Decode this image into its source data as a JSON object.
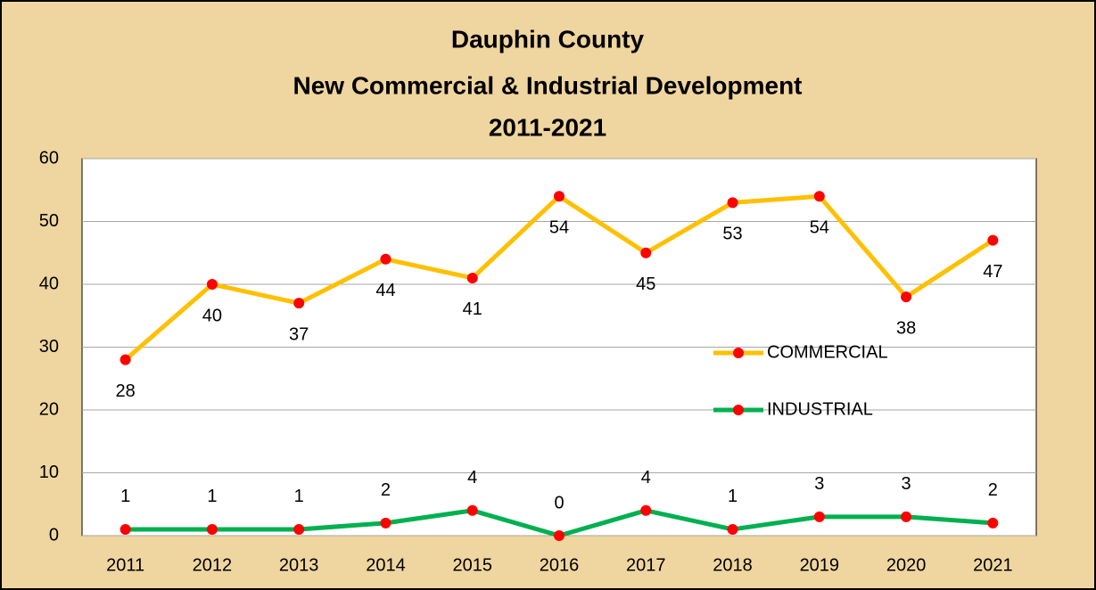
{
  "chart_data": {
    "type": "line",
    "title": [
      "Dauphin County",
      "New Commercial & Industrial Development",
      "2011-2021"
    ],
    "categories": [
      "2011",
      "2012",
      "2013",
      "2014",
      "2015",
      "2016",
      "2017",
      "2018",
      "2019",
      "2020",
      "2021"
    ],
    "series": [
      {
        "name": "COMMERCIAL",
        "color": "#ffc000",
        "values": [
          28,
          40,
          37,
          44,
          41,
          54,
          45,
          53,
          54,
          38,
          47
        ]
      },
      {
        "name": "INDUSTRIAL",
        "color": "#00b050",
        "values": [
          1,
          1,
          1,
          2,
          4,
          0,
          4,
          1,
          3,
          3,
          2
        ]
      }
    ],
    "marker_color": "#ff0000",
    "ylim": [
      0,
      60
    ],
    "yticks": [
      0,
      10,
      20,
      30,
      40,
      50,
      60
    ],
    "grid": true,
    "legend": "right"
  }
}
